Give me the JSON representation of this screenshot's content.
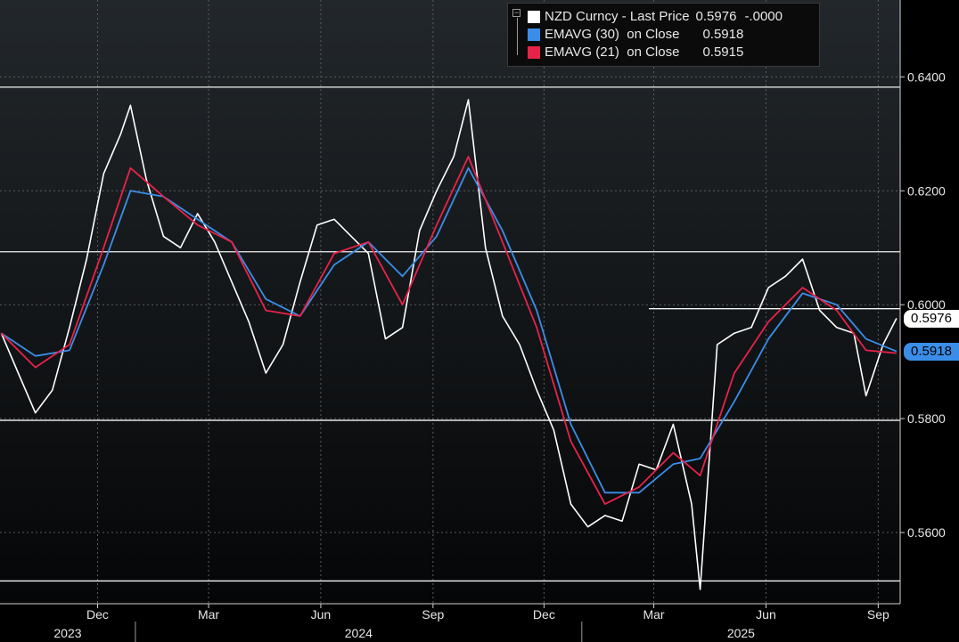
{
  "chart_data": {
    "type": "line",
    "xlim": [
      "2023-09-12",
      "2025-09-19"
    ],
    "ylim": [
      0.5475,
      0.6535
    ],
    "y_ticks": [
      "0.5600",
      "0.5800",
      "0.6000",
      "0.6200",
      "0.6400"
    ],
    "x_ticks": [
      {
        "label": "Dec",
        "date": "2023-12-01"
      },
      {
        "label": "Mar",
        "date": "2024-03-01"
      },
      {
        "label": "Jun",
        "date": "2024-06-01"
      },
      {
        "label": "Sep",
        "date": "2024-09-01"
      },
      {
        "label": "Dec",
        "date": "2024-12-01"
      },
      {
        "label": "Mar",
        "date": "2025-03-01"
      },
      {
        "label": "Jun",
        "date": "2025-06-01"
      },
      {
        "label": "Sep",
        "date": "2025-09-01"
      }
    ],
    "years": [
      {
        "label": "2023",
        "start": "2023-09-12",
        "end": "2024-01-01"
      },
      {
        "label": "2024",
        "start": "2024-01-01",
        "end": "2025-01-01"
      },
      {
        "label": "2025",
        "start": "2025-01-01",
        "end": "2025-09-19"
      }
    ],
    "grid": true,
    "legend_position": "top-right",
    "horizontal_lines": [
      0.6382,
      0.6093,
      0.5797,
      0.5515
    ],
    "partial_line": {
      "value": 0.5993,
      "from": "2025-02-25"
    },
    "series": [
      {
        "name": "NZD Curncy - Last Price",
        "color": "#ffffff",
        "points": [
          [
            "2023-09-13",
            0.595
          ],
          [
            "2023-09-27",
            0.588
          ],
          [
            "2023-10-11",
            0.581
          ],
          [
            "2023-10-25",
            0.585
          ],
          [
            "2023-11-08",
            0.596
          ],
          [
            "2023-11-22",
            0.608
          ],
          [
            "2023-12-06",
            0.623
          ],
          [
            "2023-12-20",
            0.63
          ],
          [
            "2023-12-28",
            0.635
          ],
          [
            "2024-01-10",
            0.622
          ],
          [
            "2024-01-24",
            0.612
          ],
          [
            "2024-02-07",
            0.61
          ],
          [
            "2024-02-21",
            0.616
          ],
          [
            "2024-03-06",
            0.611
          ],
          [
            "2024-03-20",
            0.604
          ],
          [
            "2024-04-03",
            0.597
          ],
          [
            "2024-04-17",
            0.588
          ],
          [
            "2024-05-01",
            0.593
          ],
          [
            "2024-05-15",
            0.604
          ],
          [
            "2024-05-29",
            0.614
          ],
          [
            "2024-06-12",
            0.615
          ],
          [
            "2024-06-26",
            0.612
          ],
          [
            "2024-07-10",
            0.609
          ],
          [
            "2024-07-24",
            0.594
          ],
          [
            "2024-08-07",
            0.596
          ],
          [
            "2024-08-21",
            0.613
          ],
          [
            "2024-09-04",
            0.62
          ],
          [
            "2024-09-18",
            0.626
          ],
          [
            "2024-09-30",
            0.636
          ],
          [
            "2024-10-14",
            0.61
          ],
          [
            "2024-10-28",
            0.598
          ],
          [
            "2024-11-11",
            0.593
          ],
          [
            "2024-11-25",
            0.585
          ],
          [
            "2024-12-09",
            0.578
          ],
          [
            "2024-12-23",
            0.565
          ],
          [
            "2025-01-06",
            0.561
          ],
          [
            "2025-01-20",
            0.563
          ],
          [
            "2025-02-03",
            0.562
          ],
          [
            "2025-02-17",
            0.572
          ],
          [
            "2025-03-03",
            0.571
          ],
          [
            "2025-03-17",
            0.579
          ],
          [
            "2025-04-01",
            0.565
          ],
          [
            "2025-04-08",
            0.55
          ],
          [
            "2025-04-22",
            0.593
          ],
          [
            "2025-05-06",
            0.595
          ],
          [
            "2025-05-20",
            0.596
          ],
          [
            "2025-06-03",
            0.603
          ],
          [
            "2025-06-17",
            0.605
          ],
          [
            "2025-07-01",
            0.608
          ],
          [
            "2025-07-15",
            0.599
          ],
          [
            "2025-07-29",
            0.596
          ],
          [
            "2025-08-12",
            0.595
          ],
          [
            "2025-08-22",
            0.584
          ],
          [
            "2025-09-05",
            0.593
          ],
          [
            "2025-09-16",
            0.5976
          ]
        ]
      },
      {
        "name": "EMAVG (30)  on Close",
        "color": "#3b8ee8",
        "points": [
          [
            "2023-09-13",
            0.595
          ],
          [
            "2023-10-11",
            0.591
          ],
          [
            "2023-11-08",
            0.592
          ],
          [
            "2023-12-06",
            0.607
          ],
          [
            "2023-12-28",
            0.62
          ],
          [
            "2024-01-24",
            0.619
          ],
          [
            "2024-02-21",
            0.615
          ],
          [
            "2024-03-20",
            0.611
          ],
          [
            "2024-04-17",
            0.601
          ],
          [
            "2024-05-15",
            0.598
          ],
          [
            "2024-06-12",
            0.607
          ],
          [
            "2024-07-10",
            0.611
          ],
          [
            "2024-08-07",
            0.605
          ],
          [
            "2024-09-04",
            0.612
          ],
          [
            "2024-09-30",
            0.624
          ],
          [
            "2024-10-28",
            0.613
          ],
          [
            "2024-11-25",
            0.599
          ],
          [
            "2024-12-23",
            0.579
          ],
          [
            "2025-01-20",
            0.567
          ],
          [
            "2025-02-17",
            0.567
          ],
          [
            "2025-03-17",
            0.572
          ],
          [
            "2025-04-08",
            0.573
          ],
          [
            "2025-05-06",
            0.583
          ],
          [
            "2025-06-03",
            0.594
          ],
          [
            "2025-07-01",
            0.602
          ],
          [
            "2025-07-29",
            0.6
          ],
          [
            "2025-08-22",
            0.594
          ],
          [
            "2025-09-16",
            0.5918
          ]
        ]
      },
      {
        "name": "EMAVG (21)  on Close",
        "color": "#e8234a",
        "points": [
          [
            "2023-09-13",
            0.595
          ],
          [
            "2023-10-11",
            0.589
          ],
          [
            "2023-11-08",
            0.593
          ],
          [
            "2023-12-06",
            0.61
          ],
          [
            "2023-12-28",
            0.624
          ],
          [
            "2024-01-24",
            0.619
          ],
          [
            "2024-02-21",
            0.614
          ],
          [
            "2024-03-20",
            0.611
          ],
          [
            "2024-04-17",
            0.599
          ],
          [
            "2024-05-15",
            0.598
          ],
          [
            "2024-06-12",
            0.609
          ],
          [
            "2024-07-10",
            0.611
          ],
          [
            "2024-08-07",
            0.6
          ],
          [
            "2024-09-04",
            0.614
          ],
          [
            "2024-09-30",
            0.626
          ],
          [
            "2024-10-28",
            0.611
          ],
          [
            "2024-11-25",
            0.596
          ],
          [
            "2024-12-23",
            0.576
          ],
          [
            "2025-01-20",
            0.565
          ],
          [
            "2025-02-17",
            0.568
          ],
          [
            "2025-03-17",
            0.574
          ],
          [
            "2025-04-08",
            0.57
          ],
          [
            "2025-05-06",
            0.588
          ],
          [
            "2025-06-03",
            0.597
          ],
          [
            "2025-07-01",
            0.603
          ],
          [
            "2025-07-29",
            0.599
          ],
          [
            "2025-08-22",
            0.592
          ],
          [
            "2025-09-16",
            0.5915
          ]
        ]
      }
    ]
  },
  "legend": {
    "collapse_glyph": "−",
    "rows": [
      {
        "label": "NZD Curncy - Last Price",
        "value": "0.5976",
        "change": "-.0000",
        "color": "#ffffff"
      },
      {
        "label": "EMAVG (30)  on Close",
        "value": "0.5918",
        "color": "#3b8ee8"
      },
      {
        "label": "EMAVG (21)  on Close",
        "value": "0.5915",
        "color": "#e8234a"
      }
    ]
  },
  "price_tags": [
    {
      "value": "0.5976",
      "numeric": 0.5976,
      "bg": "#ffffff",
      "fg": "#000000"
    },
    {
      "value": "0.5918",
      "numeric": 0.5918,
      "bg": "#3b8ee8",
      "fg": "#000000"
    }
  ]
}
